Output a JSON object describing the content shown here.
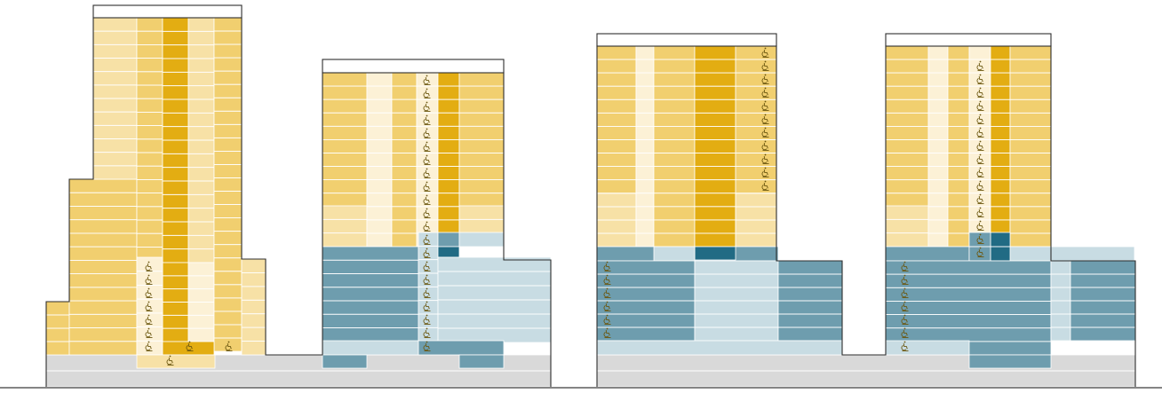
{
  "diagram": {
    "kind": "building-elevation-section",
    "buildings_shown": 2,
    "variants_shown": 2,
    "palette": {
      "yellow_pale": "#FCF1D6",
      "yellow_light": "#F7E1A6",
      "yellow_mid": "#F1CF6F",
      "yellow_deep": "#E3AD12",
      "blue_light": "#C8DCE3",
      "blue_mid": "#6E9DAE",
      "blue_deep": "#216B84",
      "base_grey": "#D9D9D9",
      "outline": "#2E2E2E",
      "accessibility_symbol": "#6B5710"
    },
    "legend_symbol_meaning": "wheelchair-accessibility-icon"
  }
}
